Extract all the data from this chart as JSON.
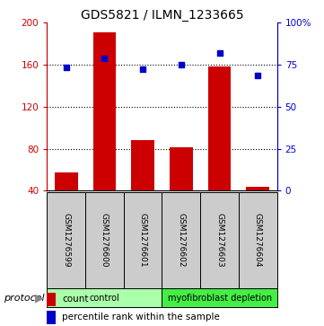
{
  "title": "GDS5821 / ILMN_1233665",
  "samples": [
    "GSM1276599",
    "GSM1276600",
    "GSM1276601",
    "GSM1276602",
    "GSM1276603",
    "GSM1276604"
  ],
  "counts": [
    57,
    191,
    88,
    81,
    158,
    44
  ],
  "percentiles": [
    73.5,
    79,
    72.5,
    75,
    82,
    68.5
  ],
  "count_baseline": 40,
  "ylim_left": [
    40,
    200
  ],
  "ylim_right": [
    0,
    100
  ],
  "yticks_left": [
    40,
    80,
    120,
    160,
    200
  ],
  "yticks_right": [
    0,
    25,
    50,
    75,
    100
  ],
  "yticklabels_right": [
    "0",
    "25",
    "50",
    "75",
    "100%"
  ],
  "bar_color": "#cc0000",
  "square_color": "#0000cc",
  "bar_width": 0.6,
  "groups": [
    {
      "label": "control",
      "indices": [
        0,
        1,
        2
      ],
      "color": "#aaffaa"
    },
    {
      "label": "myofibroblast depletion",
      "indices": [
        3,
        4,
        5
      ],
      "color": "#44ee44"
    }
  ],
  "protocol_label": "protocol",
  "legend_count": "count",
  "legend_percentile": "percentile rank within the sample",
  "sample_box_color": "#cccccc",
  "title_fontsize": 10,
  "tick_fontsize": 7.5,
  "sample_fontsize": 6.5,
  "group_fontsize": 7,
  "legend_fontsize": 7.5,
  "protocol_fontsize": 8
}
